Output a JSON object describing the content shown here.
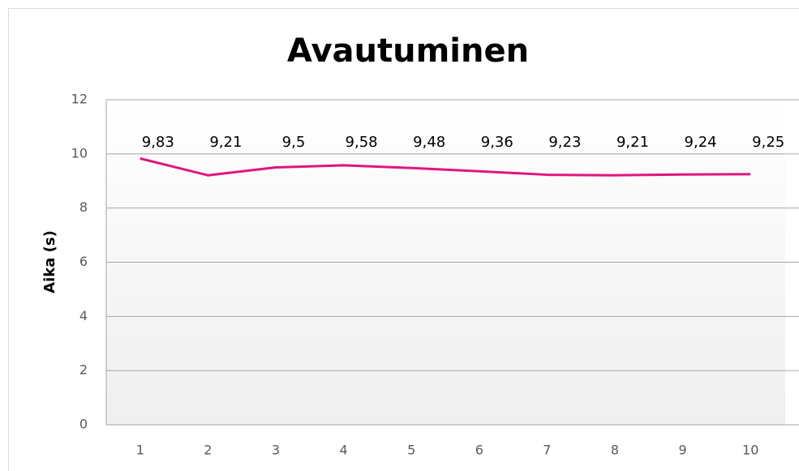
{
  "chart_data": {
    "type": "line",
    "title": "Avautuminen",
    "y_label": "Aika (s)",
    "categories": [
      1,
      2,
      3,
      4,
      5,
      6,
      7,
      8,
      9,
      10
    ],
    "series": [
      {
        "name": "Aika",
        "color": "#e0157f",
        "values": [
          9.83,
          9.21,
          9.5,
          9.58,
          9.48,
          9.36,
          9.23,
          9.21,
          9.24,
          9.25
        ],
        "value_labels": [
          "9,83",
          "9,21",
          "9,5",
          "9,58",
          "9,48",
          "9,36",
          "9,23",
          "9,21",
          "9,24",
          "9,25"
        ]
      }
    ],
    "ylim": [
      0,
      12
    ],
    "yticks": [
      0,
      2,
      4,
      6,
      8,
      10,
      12
    ],
    "grid": true
  }
}
